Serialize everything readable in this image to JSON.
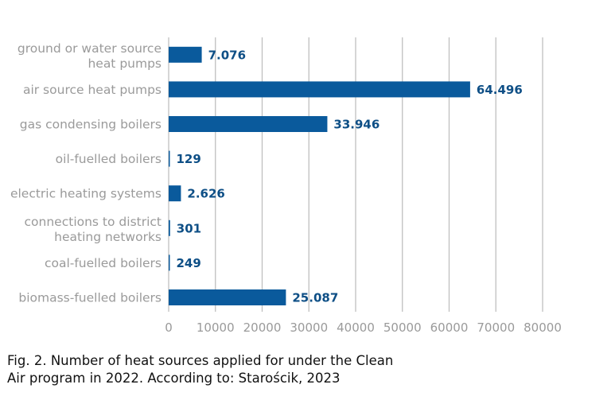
{
  "caption": {
    "line1": "Fig. 2. Number of heat sources applied for under the Clean",
    "line2": "Air program in 2022. According to: Starościk, 2023"
  },
  "colors": {
    "bar": "#0a5a9c",
    "value_label": "#0e4f86",
    "axis_label": "#9a9a9a",
    "grid": "#bfbfbf"
  },
  "chart_data": {
    "type": "bar",
    "orientation": "horizontal",
    "categories": [
      [
        "ground or water source",
        "heat pumps"
      ],
      [
        "air source heat pumps"
      ],
      [
        "gas condensing boilers"
      ],
      [
        "oil-fuelled boilers"
      ],
      [
        "electric heating systems"
      ],
      [
        "connections to district",
        "heating networks"
      ],
      [
        "coal-fuelled boilers"
      ],
      [
        "biomass-fuelled boilers"
      ]
    ],
    "values": [
      7076,
      64496,
      33946,
      129,
      2626,
      301,
      249,
      25087
    ],
    "value_labels": [
      "7.076",
      "64.496",
      "33.946",
      "129",
      "2.626",
      "301",
      "249",
      "25.087"
    ],
    "xlim": [
      0,
      80000
    ],
    "xticks": [
      0,
      10000,
      20000,
      30000,
      40000,
      50000,
      60000,
      70000,
      80000
    ],
    "xtick_labels": [
      "0",
      "10000",
      "20000",
      "30000",
      "40000",
      "50000",
      "60000",
      "70000",
      "80000"
    ],
    "grid": "vertical",
    "legend": "none"
  }
}
